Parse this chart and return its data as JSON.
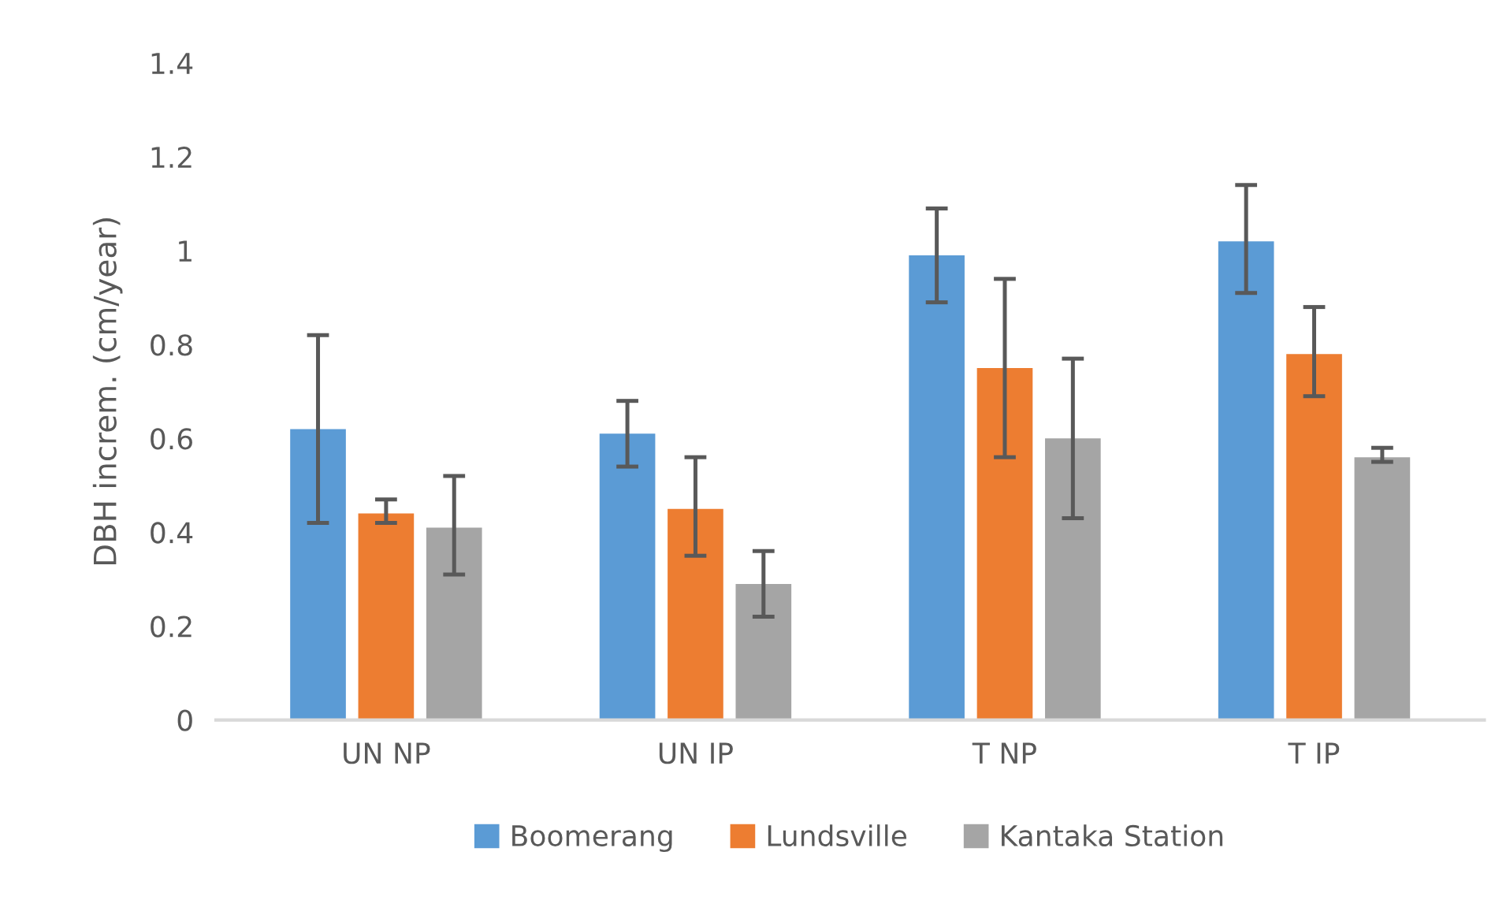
{
  "chart_data": {
    "type": "bar",
    "ylabel": "DBH increm. (cm/year)",
    "categories": [
      "UN NP",
      "UN IP",
      "T NP",
      "T IP"
    ],
    "series": [
      {
        "name": "Boomerang",
        "color": "#5b9bd5",
        "values": [
          0.62,
          0.61,
          0.99,
          1.02
        ],
        "errors": [
          [
            0.42,
            0.82
          ],
          [
            0.54,
            0.68
          ],
          [
            0.89,
            1.09
          ],
          [
            0.91,
            1.14
          ]
        ]
      },
      {
        "name": "Lundsville",
        "color": "#ed7d31",
        "values": [
          0.44,
          0.45,
          0.75,
          0.78
        ],
        "errors": [
          [
            0.42,
            0.47
          ],
          [
            0.35,
            0.56
          ],
          [
            0.56,
            0.94
          ],
          [
            0.69,
            0.88
          ]
        ]
      },
      {
        "name": "Kantaka Station",
        "color": "#a5a5a5",
        "values": [
          0.41,
          0.29,
          0.6,
          0.56
        ],
        "errors": [
          [
            0.31,
            0.52
          ],
          [
            0.22,
            0.36
          ],
          [
            0.43,
            0.77
          ],
          [
            0.55,
            0.58
          ]
        ]
      }
    ],
    "ylim": [
      0,
      1.4
    ],
    "yticks": [
      0,
      0.2,
      0.4,
      0.6,
      0.8,
      1,
      1.2,
      1.4
    ],
    "grid": false,
    "legend": "bottom"
  }
}
